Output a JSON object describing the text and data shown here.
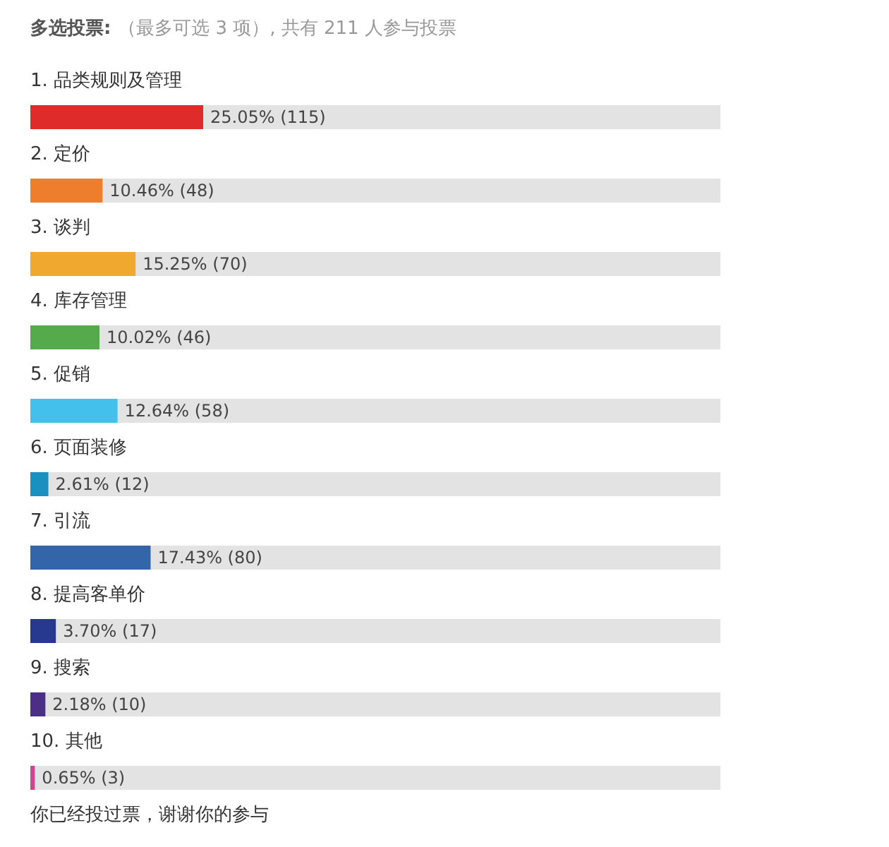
{
  "chart_data": {
    "type": "bar",
    "orientation": "horizontal",
    "title": "多选投票:",
    "subtitle": "（最多可选 3 项）, 共有 211 人参与投票",
    "categories": [
      "1. 品类规则及管理",
      "2. 定价",
      "3. 谈判",
      "4. 库存管理",
      "5. 促销",
      "6. 页面装修",
      "7. 引流",
      "8. 提高客单价",
      "9. 搜索",
      "10. 其他"
    ],
    "values": [
      25.05,
      10.46,
      15.25,
      10.02,
      12.64,
      2.61,
      17.43,
      3.7,
      2.18,
      0.65
    ],
    "colors": [
      "#e02b2b",
      "#ee7d2c",
      "#f0a82e",
      "#55aa4c",
      "#44c0ec",
      "#1a90c0",
      "#3465a8",
      "#27398f",
      "#4b2f86",
      "#c9488f"
    ],
    "value_labels": [
      "25.05% (115)",
      "10.46% (48)",
      "15.25% (70)",
      "10.02% (46)",
      "12.64% (58)",
      "2.61% (12)",
      "17.43% (80)",
      "3.70% (17)",
      "2.18% (10)",
      "0.65% (3)"
    ],
    "xlim": [
      0,
      100
    ],
    "tick_labels": false,
    "grid": false,
    "annotations": [
      "你已经投过票，谢谢你的参与"
    ]
  }
}
